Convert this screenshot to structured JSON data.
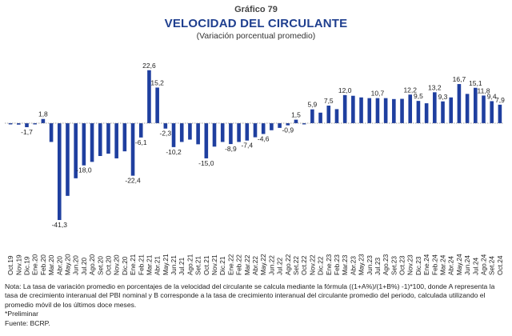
{
  "figure": {
    "label": "Gráfico 79",
    "title": "VELOCIDAD DEL CIRCULANTE",
    "subtitle": "(Variación porcentual promedio)"
  },
  "notes": {
    "nota": "Nota: La tasa de variación promedio en porcentajes de la velocidad del circulante se calcula mediante la fórmula ((1+A%)/(1+B%) -1)*100, donde A representa la tasa de crecimiento interanual del PBI nominal y B corresponde a la tasa de crecimiento interanual del circulante promedio del periodo, calculada utilizando el promedio móvil de los últimos doce meses.",
    "preliminar": "*Preliminar",
    "fuente": "Fuente: BCRP."
  },
  "colors": {
    "bar": "#1f3f9f",
    "axis": "#888888",
    "label": "#222222"
  },
  "chart_data": {
    "type": "bar",
    "categories": [
      "Oct.19",
      "Nov.19",
      "Dic.19",
      "Ene.20",
      "Feb.20",
      "Mar.20",
      "Abr.20",
      "May.20",
      "Jun.20",
      "Jul.20",
      "Ago.20",
      "Set.20",
      "Oct.20",
      "Nov.20",
      "Dic.20",
      "Ene.21",
      "Feb.21",
      "Mar.21",
      "Abr.21",
      "May.21",
      "Jun.21",
      "Jul.21",
      "Ago.21",
      "Set.21",
      "Oct.21",
      "Nov.21",
      "Dic.21",
      "Ene.22",
      "Feb.22",
      "Mar.22",
      "Abr.22",
      "May.22",
      "Jun.22",
      "Jul.22",
      "Ago.22",
      "Set.22",
      "Oct.22",
      "Nov.22",
      "Dic.22",
      "Ene.23",
      "Feb.23",
      "Mar.23",
      "Abr.23",
      "May.23",
      "Jun.23",
      "Jul.23",
      "Ago.23",
      "Set.23",
      "Oct.23",
      "Nov.23",
      "Dic.23",
      "Ene.24",
      "Feb.24",
      "Mar.24",
      "Abr.24",
      "May.24",
      "Jun.24",
      "Jul.24",
      "Ago.24",
      "Set.24",
      "Oct.24"
    ],
    "tick_labels": [
      "Oct.19",
      "Nov.19",
      "Dic.19",
      "Ene.20",
      "Feb.20",
      "Mar.20",
      "Abr.20",
      "May.20",
      "Jun.20",
      "Jul.20",
      "Ago.20",
      "Set.20",
      "Oct.20",
      "Nov.20",
      "Dic.20",
      "Ene.21",
      "Feb.21",
      "Mar.21",
      "Abr.21",
      "May.21",
      "Jun.21",
      "Jul.21",
      "Ago.21",
      "Set.21",
      "Oct.21",
      "Nov.21",
      "Dic.21",
      "Ene.22",
      "Feb.22",
      "Mar.22",
      "Abr.22",
      "May.22",
      "Jun.22",
      "Jul.22",
      "Ago.22",
      "Set.22",
      "Oct.22",
      "Nov.22",
      "Dic.22",
      "Ene.23",
      "Feb.23",
      "Mar.23",
      "Abr.23",
      "May.23",
      "Jun.23",
      "Jul.23",
      "Ago.23",
      "Set.23",
      "Oct.23",
      "Nov.23",
      "Dic.23",
      "Ene.24",
      "Feb.24",
      "Mar.24",
      "Abr.24",
      "May.24",
      "Jun.24",
      "Jul.24",
      "Ago.24",
      "Set.24",
      "Oct.24"
    ],
    "values": [
      -0.5,
      -0.6,
      -1.7,
      -0.5,
      1.8,
      -8.0,
      -41.3,
      -31.0,
      -23.5,
      -18.0,
      -16.5,
      -14.0,
      -13.0,
      -15.0,
      -12.0,
      -22.4,
      -6.1,
      22.6,
      15.2,
      -2.3,
      -10.2,
      -8.0,
      -7.0,
      -9.0,
      -15.0,
      -10.0,
      -8.0,
      -8.9,
      -8.0,
      -7.4,
      -6.0,
      -4.6,
      -3.0,
      -2.0,
      -0.9,
      1.5,
      -0.5,
      5.9,
      4.5,
      7.5,
      6.0,
      12.0,
      11.7,
      11.0,
      10.7,
      10.7,
      10.7,
      10.3,
      10.4,
      12.2,
      9.5,
      8.5,
      13.2,
      9.3,
      11.0,
      16.7,
      12.5,
      15.1,
      11.8,
      9.4,
      7.9
    ],
    "data_labels": [
      {
        "i": 2,
        "text": "-1,7"
      },
      {
        "i": 4,
        "text": "1,8"
      },
      {
        "i": 6,
        "text": "-41,3"
      },
      {
        "i": 9,
        "text": "-18,0"
      },
      {
        "i": 15,
        "text": "-22,4"
      },
      {
        "i": 16,
        "text": "-6,1"
      },
      {
        "i": 17,
        "text": "22,6"
      },
      {
        "i": 18,
        "text": "15,2"
      },
      {
        "i": 19,
        "text": "-2,3"
      },
      {
        "i": 20,
        "text": "-10,2"
      },
      {
        "i": 24,
        "text": "-15,0"
      },
      {
        "i": 27,
        "text": "-8,9"
      },
      {
        "i": 29,
        "text": "-7,4"
      },
      {
        "i": 31,
        "text": "-4,6"
      },
      {
        "i": 34,
        "text": "-0,9"
      },
      {
        "i": 35,
        "text": "1,5"
      },
      {
        "i": 37,
        "text": "5,9"
      },
      {
        "i": 39,
        "text": "7,5"
      },
      {
        "i": 41,
        "text": "12,0"
      },
      {
        "i": 45,
        "text": "10,7"
      },
      {
        "i": 49,
        "text": "12,2"
      },
      {
        "i": 50,
        "text": "9,5"
      },
      {
        "i": 52,
        "text": "13,2"
      },
      {
        "i": 53,
        "text": "9,3"
      },
      {
        "i": 55,
        "text": "16,7"
      },
      {
        "i": 57,
        "text": "15,1"
      },
      {
        "i": 58,
        "text": "11,8"
      },
      {
        "i": 59,
        "text": "9,4"
      },
      {
        "i": 60,
        "text": "7,9"
      }
    ],
    "title": "VELOCIDAD DEL CIRCULANTE",
    "subtitle": "(Variación porcentual promedio)",
    "xlabel": "",
    "ylabel": "",
    "ylim": [
      -45,
      25
    ],
    "grid": false,
    "legend": "none"
  }
}
